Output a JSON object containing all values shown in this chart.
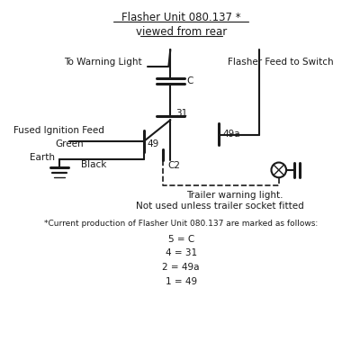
{
  "title_line1": "Flasher Unit 080.137 *",
  "title_line2": "viewed from rear",
  "bg_color": "#ffffff",
  "line_color": "#1a1a1a",
  "text_color": "#1a1a1a",
  "figsize": [
    4.0,
    4.0
  ],
  "dpi": 100,
  "labels": {
    "to_warning_light": "To Warning Light",
    "flasher_feed": "Flasher Feed to Switch",
    "fused_ignition": "Fused Ignition Feed",
    "green": "Green",
    "earth": "Earth",
    "black": "Black",
    "C": "C",
    "31": "31",
    "49": "49",
    "49a": "49a",
    "C2": "C2",
    "trailer_line1": "Trailer warning light.",
    "trailer_line2": "Not used unless trailer socket fitted",
    "footnote": "*Current production of Flasher Unit 080.137 are marked as follows:",
    "mapping": [
      "5 = C",
      "4 = 31",
      "2 = 49a",
      "1 = 49"
    ]
  }
}
